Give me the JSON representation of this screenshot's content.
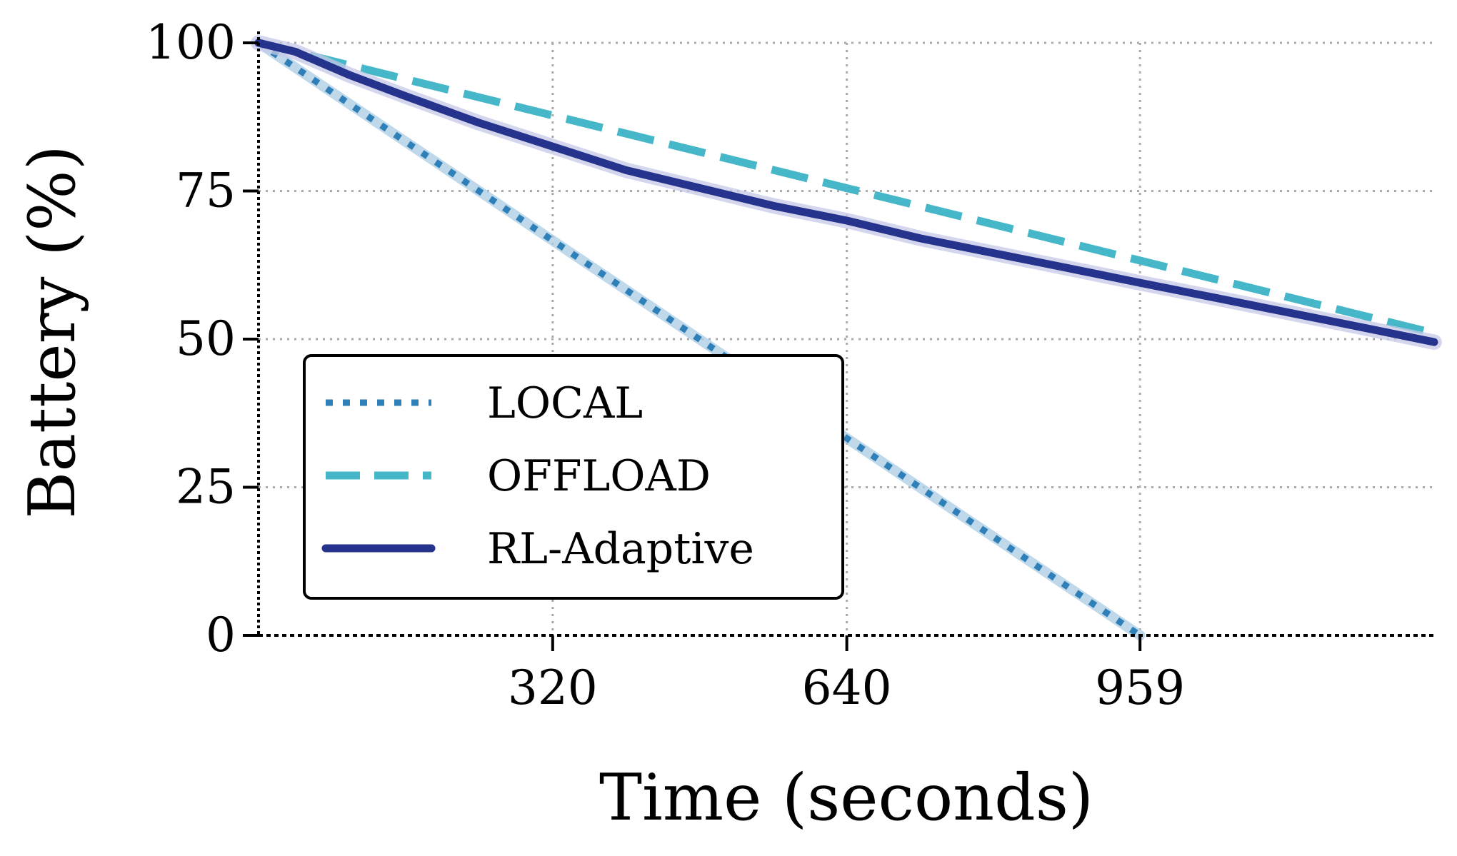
{
  "chart_data": {
    "type": "line",
    "title": "",
    "xlabel": "Time (seconds)",
    "ylabel": "Battery (%)",
    "xlim": [
      0,
      1279
    ],
    "ylim": [
      0,
      100
    ],
    "xticks": [
      320,
      640,
      959
    ],
    "xtick_labels": [
      "320",
      "640",
      "959"
    ],
    "yticks": [
      0,
      25,
      50,
      75,
      100
    ],
    "ytick_labels": [
      "0",
      "25",
      "50",
      "75",
      "100"
    ],
    "grid": true,
    "legend_position": "lower-left",
    "series": [
      {
        "name": "LOCAL",
        "style": "dotted",
        "color": "#2f7fb8",
        "band_color": "#a9cce3",
        "x": [
          0,
          959
        ],
        "y": [
          100,
          0
        ]
      },
      {
        "name": "OFFLOAD",
        "style": "dashed",
        "color": "#45b7c8",
        "x": [
          0,
          1279
        ],
        "y": [
          100,
          51
        ]
      },
      {
        "name": "RL-Adaptive",
        "style": "solid",
        "color": "#26338c",
        "band_color": "#c5c8e8",
        "x": [
          0,
          40,
          100,
          160,
          240,
          320,
          400,
          480,
          560,
          640,
          720,
          800,
          880,
          959,
          1040,
          1120,
          1200,
          1279
        ],
        "y": [
          100,
          98.5,
          94.5,
          91,
          86.5,
          82.5,
          78.5,
          75.5,
          72.5,
          70,
          67,
          64.5,
          62,
          59.5,
          57,
          54.5,
          52,
          49.5
        ]
      }
    ]
  }
}
